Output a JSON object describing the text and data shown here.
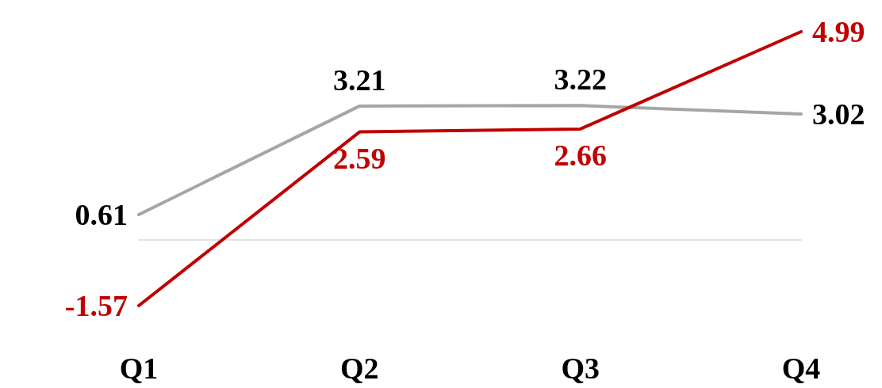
{
  "chart_data": {
    "type": "line",
    "categories": [
      "Q1",
      "Q2",
      "Q3",
      "Q4"
    ],
    "series": [
      {
        "color": "#a6a6a6",
        "values": [
          0.61,
          3.21,
          3.22,
          3.02
        ]
      },
      {
        "color": "#c00000",
        "values": [
          -1.57,
          2.59,
          2.66,
          4.99
        ]
      }
    ],
    "data_labels": true,
    "marker": "none",
    "line_style": "solid"
  }
}
